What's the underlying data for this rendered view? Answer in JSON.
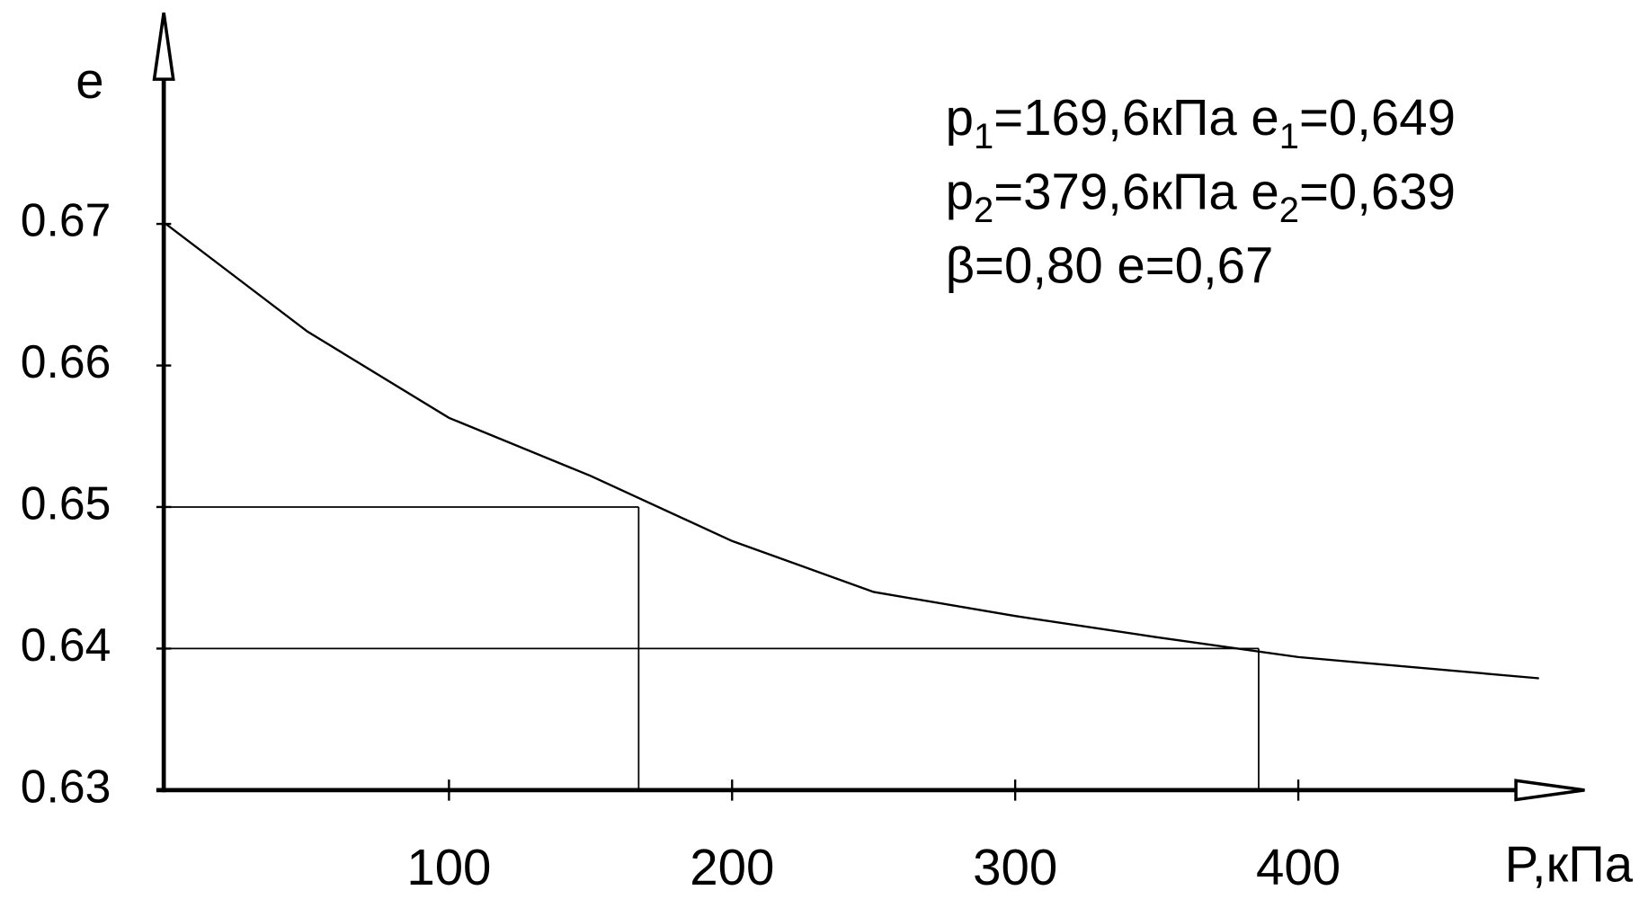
{
  "chart_data": {
    "type": "line",
    "y_label": "e",
    "x_label": "P,кПа",
    "x": [
      0,
      50,
      100,
      150,
      200,
      250,
      300,
      350,
      400,
      485
    ],
    "series": [
      {
        "color": "#000000",
        "values": [
          0.67,
          0.6624,
          0.6563,
          0.6522,
          0.6476,
          0.644,
          0.6423,
          0.6408,
          0.6394,
          0.6379
        ]
      }
    ],
    "guides": [
      {
        "x": 167,
        "y": 0.65
      },
      {
        "x": 386,
        "y": 0.64
      }
    ],
    "xlim": [
      0,
      500
    ],
    "ylim": [
      0.63,
      0.685
    ],
    "xticks": [
      100,
      200,
      300,
      400
    ],
    "yticks": [
      0.63,
      0.64,
      0.65,
      0.66,
      0.67
    ],
    "annotations": [
      [
        "p",
        "1",
        "=169,6кПа  e",
        "1",
        "=0,649"
      ],
      [
        "p",
        "2",
        "=379,6кПа  e",
        "2",
        "=0,639"
      ],
      [
        "β=0,80  e=0,67"
      ]
    ]
  }
}
